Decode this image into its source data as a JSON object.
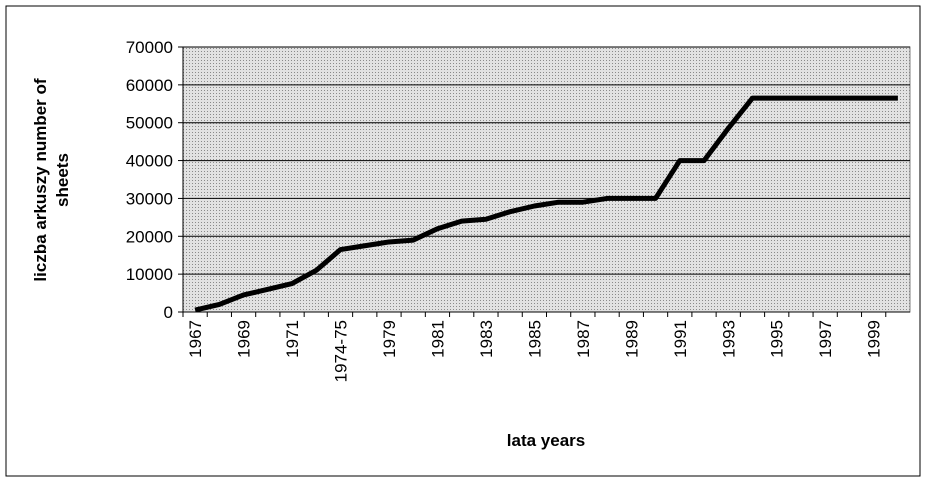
{
  "chart_data": {
    "type": "line",
    "y_label_lines": [
      "liczba arkuszy  number of",
      "sheets"
    ],
    "x_label": "lata years",
    "categories": [
      "1967",
      null,
      "1969",
      null,
      "1971",
      null,
      "1974-75",
      null,
      "1979",
      null,
      "1981",
      null,
      "1983",
      null,
      "1985",
      null,
      "1987",
      null,
      "1989",
      null,
      "1991",
      null,
      "1993",
      null,
      "1995",
      null,
      "1997",
      null,
      "1999",
      null
    ],
    "series": [
      {
        "color": "#000000",
        "values": [
          500,
          2000,
          4500,
          6000,
          7500,
          11000,
          16500,
          17500,
          18500,
          19000,
          22000,
          24000,
          24500,
          26500,
          28000,
          29000,
          29000,
          30000,
          30000,
          30000,
          40000,
          40000,
          48500,
          56500,
          56500,
          56500,
          56500,
          56500,
          56500,
          56500
        ]
      }
    ],
    "ylim": [
      0,
      70000
    ],
    "yticks": [
      0,
      10000,
      20000,
      30000,
      40000,
      50000,
      60000,
      70000
    ],
    "grid": true
  }
}
